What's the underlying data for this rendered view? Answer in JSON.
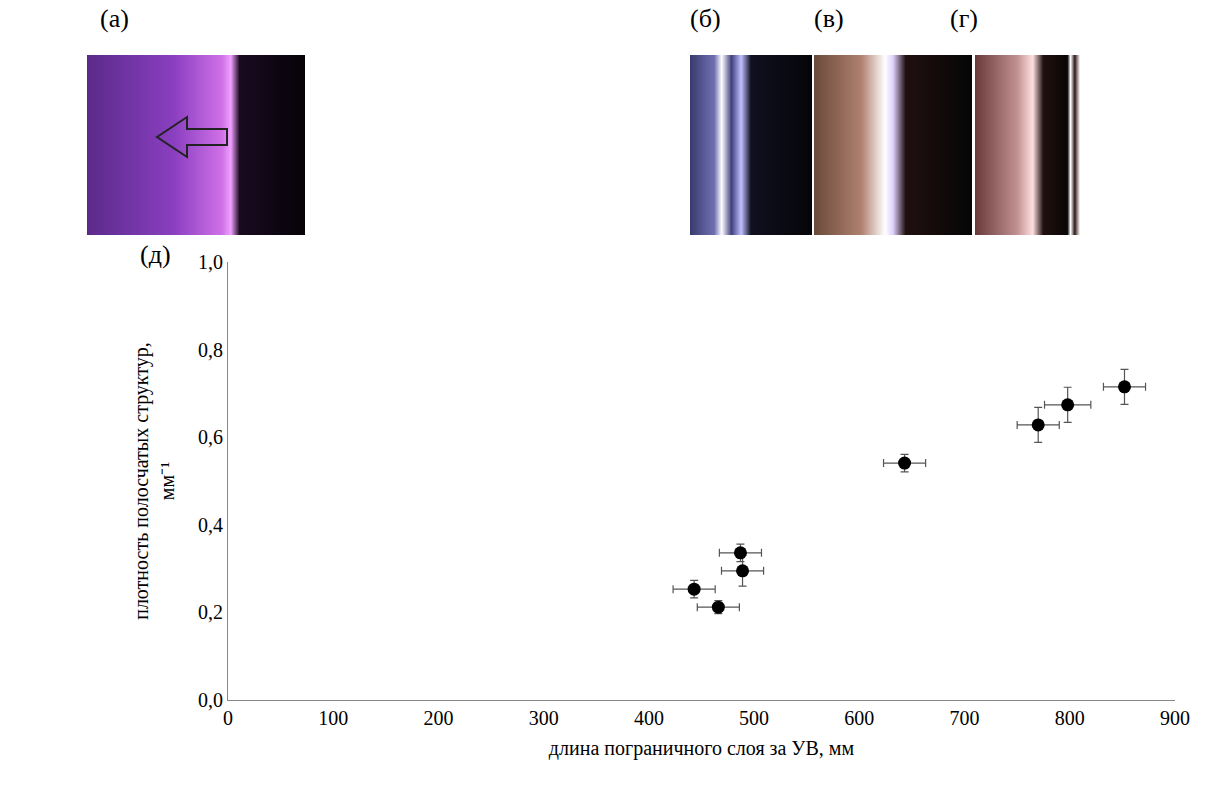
{
  "panel_labels": [
    "(а)",
    "(б)",
    "(в)",
    "(г)",
    "(д)"
  ],
  "chart_data": {
    "type": "scatter",
    "x_label": "длина пограничного слоя за УВ, мм",
    "y_label": "плотность полосчатых структур, мм⁻¹",
    "x": [
      443,
      466,
      487,
      489,
      643,
      770,
      798,
      852
    ],
    "values": [
      0.253,
      0.212,
      0.336,
      0.295,
      0.541,
      0.628,
      0.674,
      0.715
    ],
    "x_error": [
      20,
      20,
      20,
      20,
      20,
      20,
      22,
      20
    ],
    "y_error": [
      0.02,
      0.015,
      0.02,
      0.035,
      0.02,
      0.04,
      0.04,
      0.04
    ],
    "color": "#000000",
    "marker": "circle",
    "xlim": [
      0,
      900
    ],
    "ylim": [
      0,
      1.0
    ],
    "xticks": [
      0,
      100,
      200,
      300,
      400,
      500,
      600,
      700,
      800,
      900
    ],
    "yticks": [
      {
        "value": 0,
        "label": "0,0"
      },
      {
        "value": 0.2,
        "label": "0,2"
      },
      {
        "value": 0.4,
        "label": "0,4"
      },
      {
        "value": 0.6,
        "label": "0,6"
      },
      {
        "value": 0.8,
        "label": "0,8"
      },
      {
        "value": 1.0,
        "label": "1,0"
      }
    ],
    "grid": false
  }
}
